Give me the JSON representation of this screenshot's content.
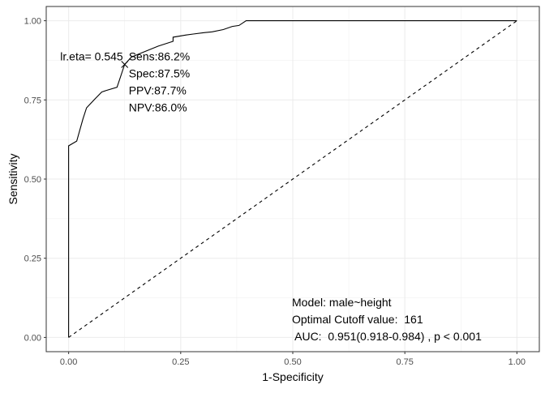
{
  "chart_data": {
    "type": "line",
    "title": "",
    "xlabel": "1-Specificity",
    "ylabel": "Sensitivity",
    "xlim": [
      -0.05,
      1.05
    ],
    "ylim": [
      -0.045,
      1.045
    ],
    "x_ticks": [
      0,
      0.25,
      0.5,
      0.75,
      1
    ],
    "y_ticks": [
      0,
      0.25,
      0.5,
      0.75,
      1
    ],
    "x_tick_labels": [
      "0.00",
      "0.25",
      "0.50",
      "0.75",
      "1.00"
    ],
    "y_tick_labels": [
      "0.00",
      "0.25",
      "0.50",
      "0.75",
      "1.00"
    ],
    "grid": true,
    "series": [
      {
        "style": "solid",
        "color": "#000000",
        "x": [
          0,
          0,
          0.018,
          0.032,
          0.04,
          0.058,
          0.074,
          0.084,
          0.108,
          0.125,
          0.14,
          0.165,
          0.2,
          0.233,
          0.233,
          0.262,
          0.278,
          0.3,
          0.32,
          0.345,
          0.365,
          0.38,
          0.396,
          1
        ],
        "y": [
          0,
          0.605,
          0.62,
          0.69,
          0.725,
          0.752,
          0.775,
          0.78,
          0.79,
          0.862,
          0.885,
          0.9,
          0.92,
          0.935,
          0.948,
          0.955,
          0.958,
          0.962,
          0.965,
          0.972,
          0.982,
          0.985,
          1,
          1
        ]
      },
      {
        "style": "dashed",
        "color": "#000000",
        "x": [
          0,
          1
        ],
        "y": [
          0,
          1
        ]
      }
    ],
    "cutoff_point": {
      "x": 0.125,
      "y": 0.862,
      "label": "lr.eta= 0.545",
      "stats": [
        "Sens:86.2%",
        "Spec:87.5%",
        "PPV:87.7%",
        "NPV:86.0%"
      ]
    },
    "model_annotations": [
      "Model: male~height",
      "Optimal Cutoff value:  161",
      " AUC:  0.951(0.918-0.984) , p < 0.001"
    ]
  }
}
